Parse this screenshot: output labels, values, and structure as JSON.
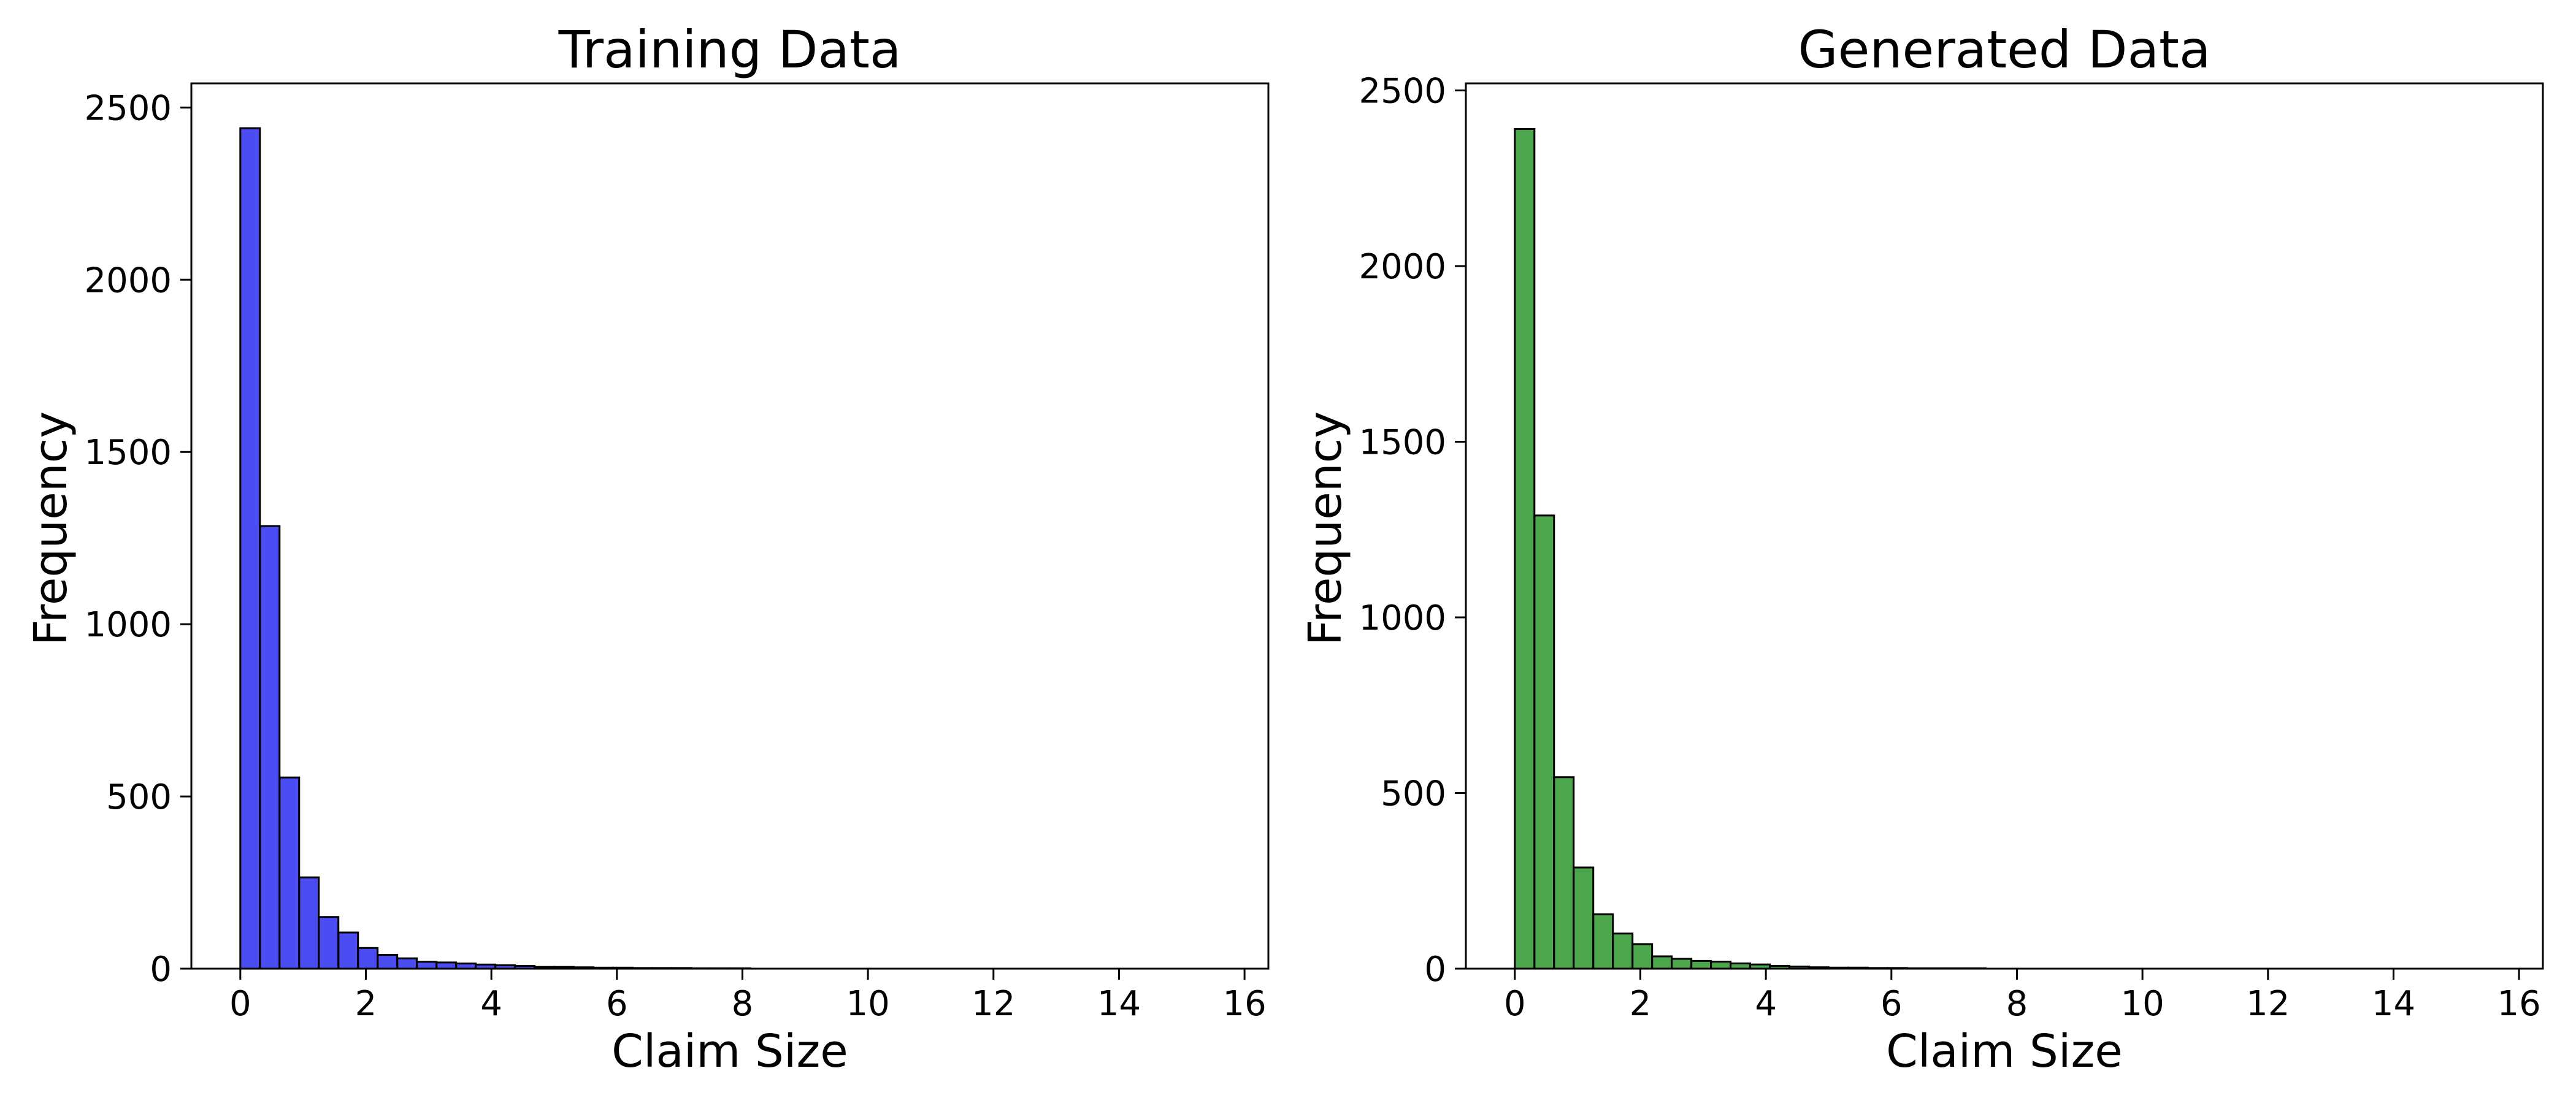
{
  "chart_data": [
    {
      "type": "bar",
      "title": "Training Data",
      "xlabel": "Claim Size",
      "ylabel": "Frequency",
      "xlim": [
        -0.78,
        16.38
      ],
      "ylim": [
        0,
        2570
      ],
      "xticks": [
        0,
        2,
        4,
        6,
        8,
        10,
        12,
        14,
        16
      ],
      "yticks": [
        0,
        500,
        1000,
        1500,
        2000,
        2500
      ],
      "grid": false,
      "color": "#0000ee",
      "edge_color": "#000000",
      "bin_width": 0.3125,
      "bin_start": 0,
      "values": [
        2440,
        1285,
        555,
        265,
        150,
        105,
        60,
        40,
        30,
        20,
        18,
        15,
        12,
        10,
        8,
        5,
        5,
        4,
        3,
        3,
        2,
        2,
        2,
        1,
        1,
        1,
        0,
        0,
        0,
        0,
        0,
        0,
        0,
        0,
        0,
        0,
        0,
        0,
        0,
        0,
        0,
        0,
        0,
        0,
        0,
        0,
        0,
        0,
        0,
        0
      ]
    },
    {
      "type": "bar",
      "title": "Generated Data",
      "xlabel": "Claim Size",
      "ylabel": "Frequency",
      "xlim": [
        -0.78,
        16.38
      ],
      "ylim": [
        0,
        2520
      ],
      "xticks": [
        0,
        2,
        4,
        6,
        8,
        10,
        12,
        14,
        16
      ],
      "yticks": [
        0,
        500,
        1000,
        1500,
        2000,
        2500
      ],
      "grid": false,
      "color": "#008000",
      "edge_color": "#000000",
      "bin_width": 0.3125,
      "bin_start": 0,
      "values": [
        2390,
        1290,
        545,
        288,
        155,
        100,
        70,
        35,
        28,
        22,
        20,
        15,
        12,
        8,
        6,
        4,
        3,
        3,
        2,
        2,
        1,
        1,
        1,
        1,
        0,
        0,
        0,
        0,
        0,
        0,
        0,
        0,
        0,
        0,
        0,
        0,
        0,
        0,
        0,
        0,
        0,
        0,
        0,
        0,
        0,
        0,
        0,
        0,
        0,
        0
      ]
    }
  ]
}
